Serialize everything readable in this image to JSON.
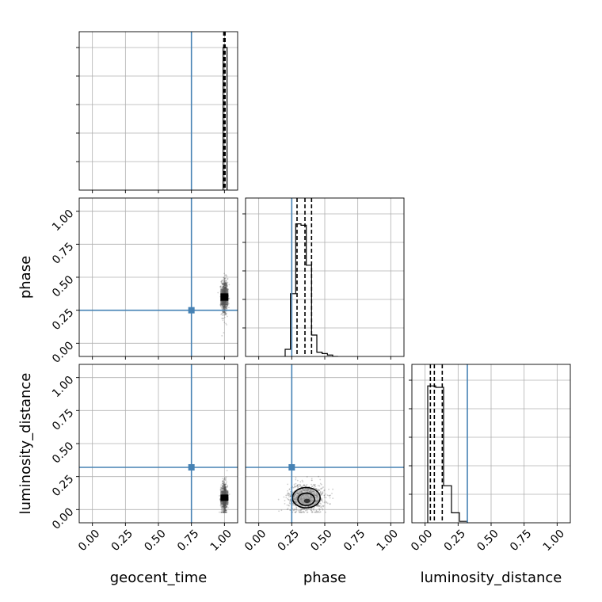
{
  "chart_data": {
    "type": "corner",
    "parameters": [
      "geocent_time",
      "phase",
      "luminosity_distance"
    ],
    "range": [
      -0.1,
      1.1
    ],
    "tick_values": [
      0.0,
      0.25,
      0.5,
      0.75,
      1.0
    ],
    "tick_labels": [
      "0.00",
      "0.25",
      "0.50",
      "0.75",
      "1.00"
    ],
    "grid": true,
    "colors": {
      "truth": "#4682b4",
      "hist": "#000000",
      "points": "#444444",
      "grid": "#b0b0b0"
    },
    "truths": {
      "geocent_time": 0.75,
      "phase": 0.25,
      "luminosity_distance": 0.32
    },
    "quantiles": {
      "geocent_time": [
        0.995,
        1.0,
        1.005
      ],
      "phase": [
        0.29,
        0.35,
        0.4
      ],
      "luminosity_distance": [
        0.04,
        0.07,
        0.13
      ]
    },
    "histograms": {
      "geocent_time": {
        "edges": [
          0.99,
          1.02
        ],
        "counts": [
          1.0
        ]
      },
      "phase": {
        "edges": [
          0.2,
          0.24,
          0.28,
          0.32,
          0.36,
          0.4,
          0.44,
          0.48,
          0.52,
          0.56,
          0.6
        ],
        "counts": [
          0.05,
          0.44,
          0.93,
          0.92,
          0.64,
          0.15,
          0.03,
          0.02,
          0.01,
          0.0
        ]
      },
      "luminosity_distance": {
        "edges": [
          0.02,
          0.08,
          0.14,
          0.2,
          0.26,
          0.32
        ],
        "counts": [
          0.96,
          0.95,
          0.26,
          0.07,
          0.01
        ]
      }
    },
    "scatter": {
      "phase_vs_geocent_time": {
        "x_center": 1.0,
        "x_spread": 0.012,
        "y_center": 0.35,
        "y_spread": 0.07,
        "n": 700
      },
      "luminosity_distance_vs_geocent_time": {
        "x_center": 1.0,
        "x_spread": 0.012,
        "y_center": 0.09,
        "y_spread": 0.06,
        "n": 700
      },
      "luminosity_distance_vs_phase": {
        "x_center": 0.36,
        "x_spread": 0.07,
        "y_center": 0.09,
        "y_spread": 0.055,
        "n": 900
      }
    }
  }
}
